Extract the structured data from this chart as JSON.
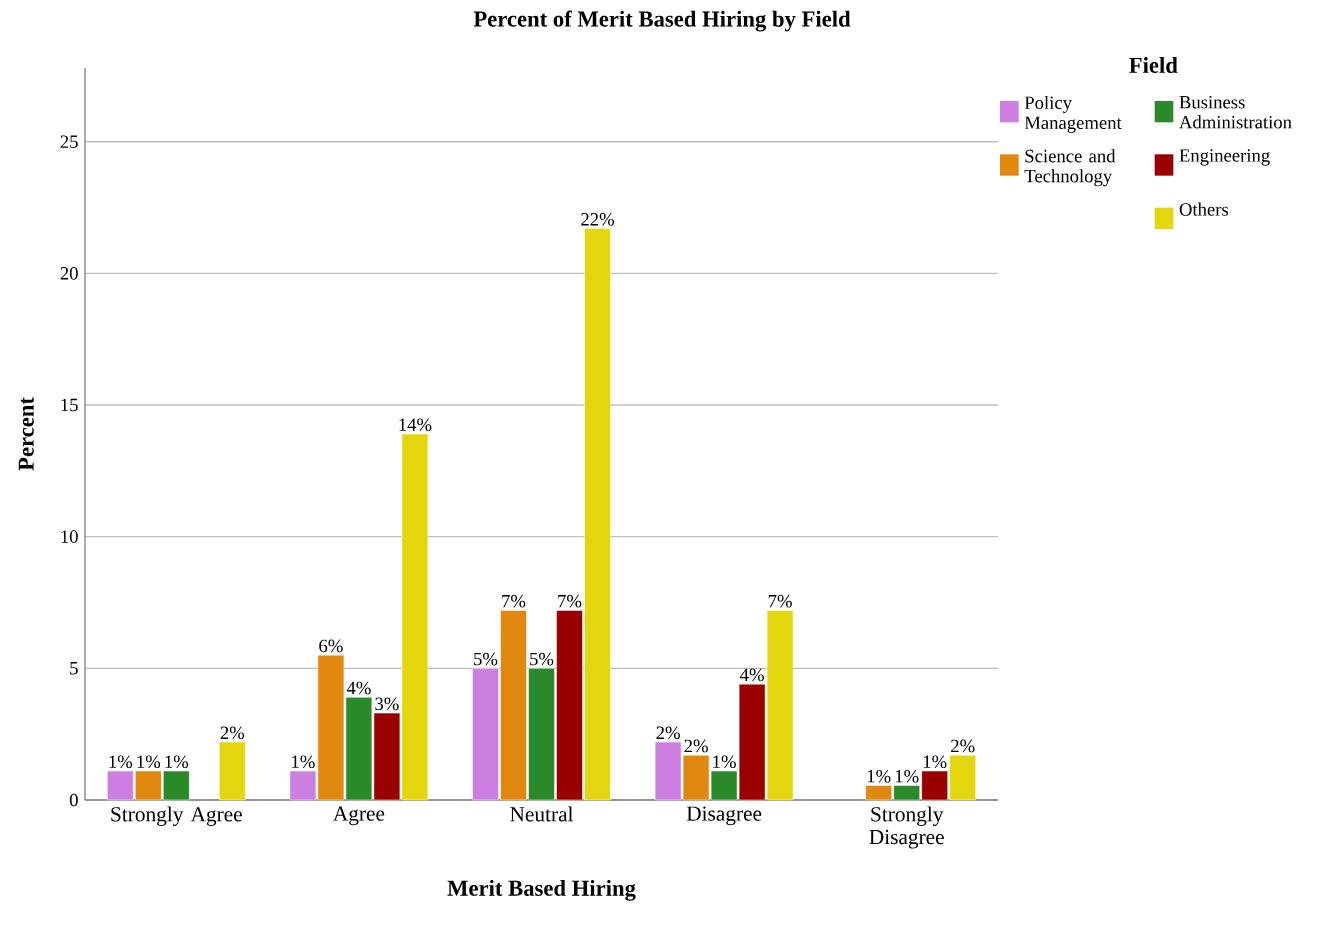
{
  "chart_data": {
    "type": "bar",
    "title": "Percent of Merit Based Hiring by Field",
    "xlabel": "Merit Based Hiring",
    "ylabel": "Percent",
    "legend_title": "Field",
    "categories": [
      "Strongly Agree",
      "Agree",
      "Neutral",
      "Disagree",
      "Strongly Disagree"
    ],
    "series": [
      {
        "name": "Policy Management",
        "color": "#cc7fe0",
        "values": [
          1.1,
          1.1,
          5.0,
          2.2,
          null
        ],
        "value_labels": [
          "1%",
          "1%",
          "5%",
          "2%",
          null
        ]
      },
      {
        "name": "Science and Technology",
        "color": "#e0880f",
        "values": [
          1.1,
          5.5,
          7.2,
          1.7,
          0.55
        ],
        "value_labels": [
          "1%",
          "6%",
          "7%",
          "2%",
          "1%"
        ]
      },
      {
        "name": "Business Administration",
        "color": "#2a8a2a",
        "values": [
          1.1,
          3.9,
          5.0,
          1.1,
          0.55
        ],
        "value_labels": [
          "1%",
          "4%",
          "5%",
          "1%",
          "1%"
        ]
      },
      {
        "name": "Engineering",
        "color": "#990000",
        "values": [
          null,
          3.3,
          7.2,
          4.4,
          1.1
        ],
        "value_labels": [
          null,
          "3%",
          "7%",
          "4%",
          "1%"
        ]
      },
      {
        "name": "Others",
        "color": "#e3d60e",
        "values": [
          2.2,
          13.9,
          21.7,
          7.2,
          1.7
        ],
        "value_labels": [
          "2%",
          "14%",
          "22%",
          "7%",
          "2%"
        ]
      }
    ],
    "ylim": [
      0,
      27.8
    ],
    "yticks": [
      0,
      5,
      10,
      15,
      20,
      25
    ],
    "grid": "y",
    "legend": "top right"
  }
}
